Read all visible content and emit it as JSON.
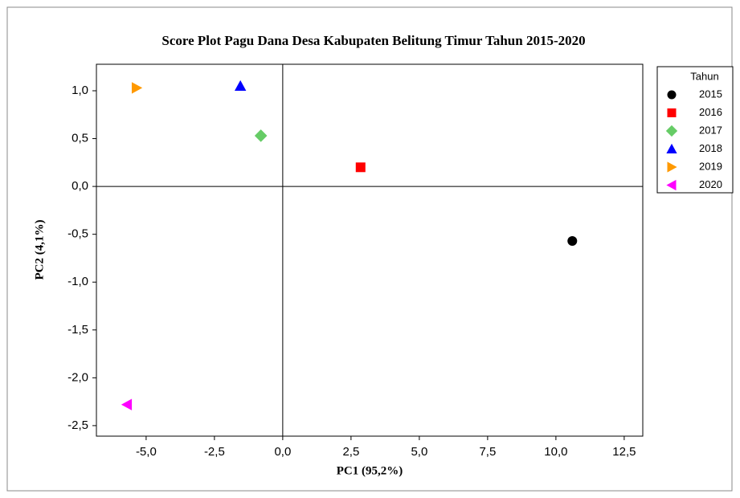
{
  "chart_data": {
    "type": "scatter",
    "title": "Score Plot Pagu Dana Desa Kabupaten Belitung Timur Tahun 2015-2020",
    "xlabel": "PC1 (95,2%)",
    "ylabel": "PC2 (4,1%)",
    "legend_title": "Tahun",
    "legend": "right",
    "series": [
      {
        "name": "2015",
        "color": "#000000",
        "marker": "circle",
        "x": [
          10.6
        ],
        "values": [
          -0.57
        ]
      },
      {
        "name": "2016",
        "color": "#ff0000",
        "marker": "square",
        "x": [
          2.85
        ],
        "values": [
          0.2
        ]
      },
      {
        "name": "2017",
        "color": "#66cc66",
        "marker": "diamond",
        "x": [
          -0.8
        ],
        "values": [
          0.53
        ]
      },
      {
        "name": "2018",
        "color": "#0000ff",
        "marker": "triangle-up",
        "x": [
          -1.55
        ],
        "values": [
          1.05
        ]
      },
      {
        "name": "2019",
        "color": "#ff9900",
        "marker": "triangle-right",
        "x": [
          -5.35
        ],
        "values": [
          1.03
        ]
      },
      {
        "name": "2020",
        "color": "#ff00ff",
        "marker": "triangle-left",
        "x": [
          -5.7
        ],
        "values": [
          -2.28
        ]
      }
    ],
    "reference_lines": {
      "x": 0,
      "y": 0
    },
    "xlim": [
      -6.82,
      13.18
    ],
    "ylim": [
      -2.61,
      1.277
    ],
    "xticks": [
      {
        "value": -5,
        "label": "-5,0"
      },
      {
        "value": -2.5,
        "label": "-2,5"
      },
      {
        "value": 0,
        "label": "0,0"
      },
      {
        "value": 2.5,
        "label": "2,5"
      },
      {
        "value": 5,
        "label": "5,0"
      },
      {
        "value": 7.5,
        "label": "7,5"
      },
      {
        "value": 10,
        "label": "10,0"
      },
      {
        "value": 12.5,
        "label": "12,5"
      }
    ],
    "yticks": [
      {
        "value": 1,
        "label": "1,0"
      },
      {
        "value": 0.5,
        "label": "0,5"
      },
      {
        "value": 0,
        "label": "0,0"
      },
      {
        "value": -0.5,
        "label": "-0,5"
      },
      {
        "value": -1,
        "label": "-1,0"
      },
      {
        "value": -1.5,
        "label": "-1,5"
      },
      {
        "value": -2,
        "label": "-2,0"
      },
      {
        "value": -2.5,
        "label": "-2,5"
      }
    ]
  }
}
